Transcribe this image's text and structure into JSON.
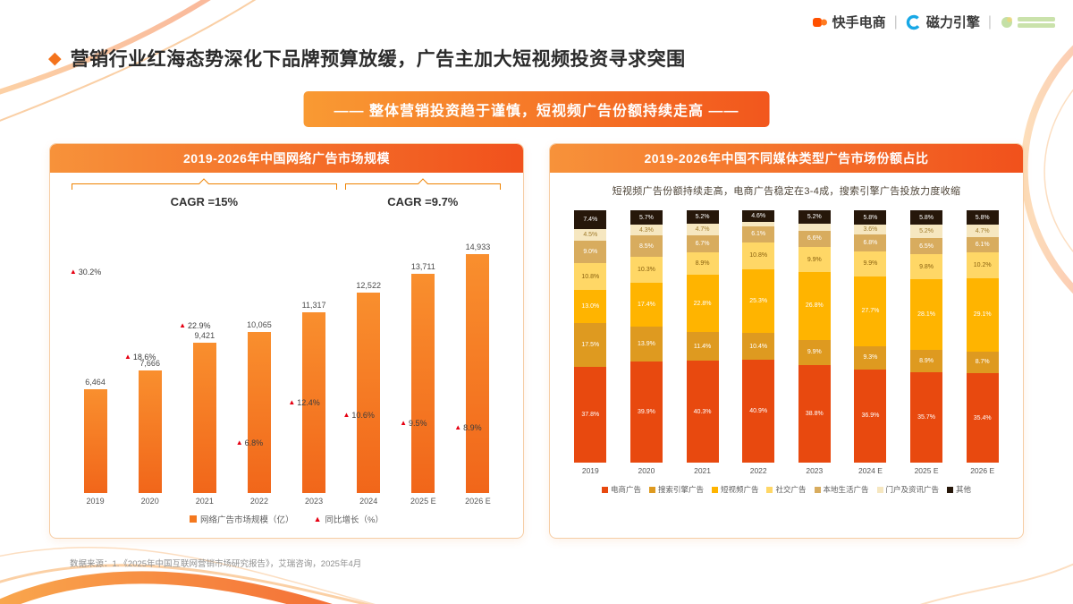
{
  "header": {
    "logos": {
      "kuaishou": "快手电商",
      "engine": "磁力引擎"
    },
    "title": "营销行业红海态势深化下品牌预算放缓，广告主加大短视频投资寻求突围",
    "banner": "——  整体营销投资趋于谨慎，短视频广告份额持续走高  ——"
  },
  "colors": {
    "accent": "#F4731C",
    "card_header_gradient": [
      "#F7923A",
      "#F1511C"
    ],
    "bar": "#F4781E",
    "growth_marker": "#E60012"
  },
  "chart_data": [
    {
      "type": "bar",
      "title": "2019-2026年中国网络广告市场规模",
      "categories": [
        "2019",
        "2020",
        "2021",
        "2022",
        "2023",
        "2024",
        "2025 E",
        "2026 E"
      ],
      "bar_series": {
        "name": "网络广告市场规模（亿）",
        "values": [
          6464,
          7666,
          9421,
          10065,
          11317,
          12522,
          13711,
          14933
        ],
        "labels": [
          "6,464",
          "7,666",
          "9,421",
          "10,065",
          "11,317",
          "12,522",
          "13,711",
          "14,933"
        ]
      },
      "line_series": {
        "name": "同比增长（%）",
        "values": [
          30.2,
          18.6,
          22.9,
          6.8,
          12.4,
          10.6,
          9.5,
          8.9
        ],
        "labels": [
          "30.2%",
          "18.6%",
          "22.9%",
          "6.8%",
          "12.4%",
          "10.6%",
          "9.5%",
          "8.9%"
        ]
      },
      "annotations": [
        {
          "label": "CAGR =15%",
          "from": "2019",
          "to": "2023"
        },
        {
          "label": "CAGR =9.7%",
          "from": "2024",
          "to": "2026 E"
        }
      ],
      "ylim": [
        0,
        16000
      ],
      "y2lim": [
        0,
        35
      ],
      "legend_position": "bottom",
      "grid": false
    },
    {
      "type": "stacked-bar",
      "title": "2019-2026年中国不同媒体类型广告市场份额占比",
      "subtitle": "短视频广告份额持续走高，电商广告稳定在3-4成，搜索引擎广告投放力度收缩",
      "categories": [
        "2019",
        "2020",
        "2021",
        "2022",
        "2023",
        "2024 E",
        "2025 E",
        "2026 E"
      ],
      "unit": "%",
      "ylim": [
        0,
        100
      ],
      "legend_position": "bottom",
      "series": [
        {
          "name": "电商广告",
          "color": "#E8490F",
          "label_color": "#ffffff",
          "values": [
            37.8,
            39.9,
            40.3,
            40.9,
            38.8,
            36.9,
            35.7,
            35.4
          ]
        },
        {
          "name": "搜索引擎广告",
          "color": "#DE9A20",
          "label_color": "#ffffff",
          "values": [
            17.5,
            13.9,
            11.4,
            10.4,
            9.9,
            9.3,
            8.9,
            8.7
          ]
        },
        {
          "name": "短视频广告",
          "color": "#FFB400",
          "label_color": "#ffffff",
          "values": [
            13.0,
            17.4,
            22.8,
            25.3,
            26.8,
            27.7,
            28.1,
            29.1
          ]
        },
        {
          "name": "社交广告",
          "color": "#FFD766",
          "label_color": "#8a6210",
          "values": [
            10.8,
            10.3,
            8.9,
            10.8,
            9.9,
            9.9,
            9.8,
            10.2
          ]
        },
        {
          "name": "本地生活广告",
          "color": "#D8AC5E",
          "label_color": "#ffffff",
          "values": [
            9.0,
            8.5,
            6.7,
            6.1,
            6.6,
            6.8,
            6.5,
            6.1
          ]
        },
        {
          "name": "门户及资讯广告",
          "color": "#F6E7C0",
          "label_color": "#a07c2c",
          "values": [
            4.5,
            4.3,
            4.7,
            1.9,
            2.8,
            3.6,
            5.2,
            4.7
          ]
        },
        {
          "name": "其他",
          "color": "#26170A",
          "label_color": "#ffffff",
          "values": [
            7.4,
            5.7,
            5.2,
            4.6,
            5.2,
            5.8,
            5.8,
            5.8
          ]
        }
      ]
    }
  ],
  "footer": {
    "source": "数据来源：1.《2025年中国互联网营销市场研究报告》，艾瑞咨询，2025年4月"
  }
}
